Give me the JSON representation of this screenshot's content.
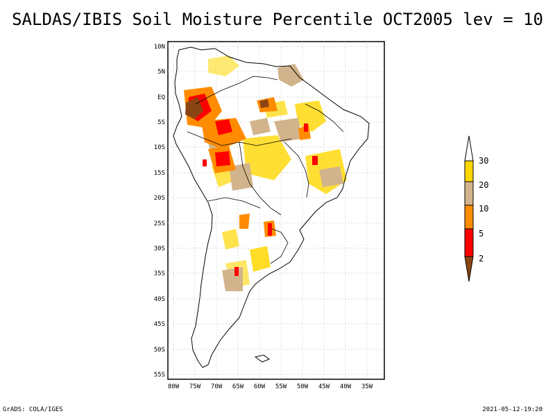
{
  "title": "SALDAS/IBIS Soil Moisture Percentile OCT2005 lev = 10",
  "footer": {
    "left": "GrADS: COLA/IGES",
    "right": "2021-05-12-19:20"
  },
  "map": {
    "lat_ticks": [
      "10N",
      "5N",
      "EQ",
      "5S",
      "10S",
      "15S",
      "20S",
      "25S",
      "30S",
      "35S",
      "40S",
      "45S",
      "50S",
      "55S"
    ],
    "lon_ticks": [
      "80W",
      "75W",
      "70W",
      "65W",
      "60W",
      "55W",
      "50W",
      "45W",
      "40W",
      "35W"
    ]
  },
  "legend": {
    "labels": [
      "2",
      "5",
      "10",
      "20",
      "30"
    ],
    "colors": [
      "#8b4513",
      "#ff0000",
      "#ff8c00",
      "#d2b48c",
      "#ffd700"
    ]
  }
}
